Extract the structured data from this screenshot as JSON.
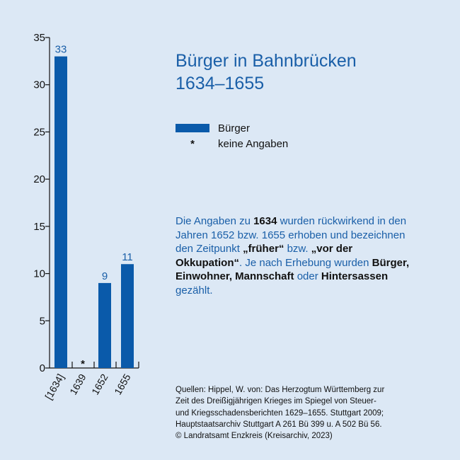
{
  "title": {
    "line1": "Bürger in Bahnbrücken",
    "line2": "1634–1655"
  },
  "legend": {
    "series_label": "Bürger",
    "missing_symbol": "*",
    "missing_label": "keine Angaben"
  },
  "colors": {
    "bar": "#0a5aaa",
    "title": "#1a5fa8",
    "background": "#dce8f5"
  },
  "note": {
    "t1": "Die Angaben zu ",
    "b1": "1634",
    "t2": " wurden rückwirkend in den Jahren 1652 bzw. 1655 erhoben und bezeichnen den Zeitpunkt ",
    "b2": "„früher“",
    "t3": " bzw. ",
    "b3": "„vor der Okkupation“",
    "t4": ". Je nach Erhebung wurden ",
    "b4": "Bürger, Einwohner, Mannschaft",
    "t5": " oder ",
    "b5": "Hintersassen",
    "t6": " gezählt."
  },
  "sources": {
    "line1": "Quellen: Hippel, W. von: Das Herzogtum Württemberg zur",
    "line2": "Zeit des Dreißigjährigen Krieges im Spiegel von Steuer-",
    "line3": "und Kriegsschadensberichten 1629–1655. Stuttgart 2009;",
    "line4": "Hauptstaatsarchiv Stuttgart A 261 Bü 399 u. A 502 Bü 56.",
    "line5": "© Landratsamt Enzkreis (Kreisarchiv, 2023)"
  },
  "chart_data": {
    "type": "bar",
    "categories": [
      "[1634]",
      "1639",
      "1652",
      "1655"
    ],
    "values": [
      33,
      null,
      9,
      11
    ],
    "data_labels": [
      "33",
      "*",
      "9",
      "11"
    ],
    "yticks": [
      "0",
      "5",
      "10",
      "15",
      "20",
      "25",
      "30",
      "35"
    ],
    "ylim": [
      0,
      35
    ],
    "grid": false,
    "legend_position": "right"
  }
}
